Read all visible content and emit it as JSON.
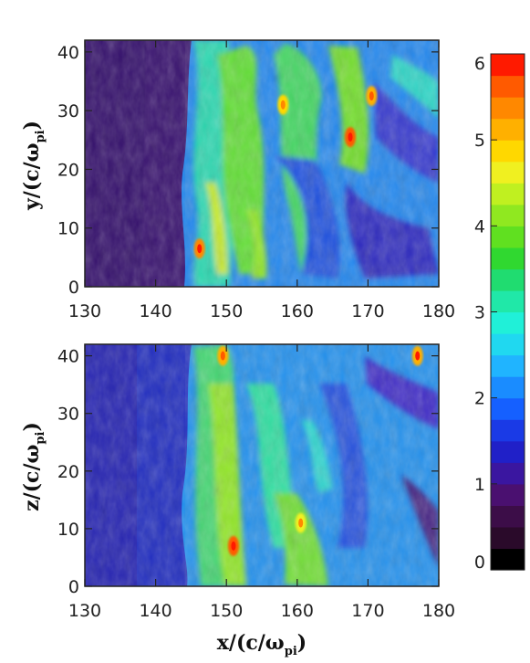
{
  "chart_data": [
    {
      "type": "heatmap",
      "panel": "top",
      "xlabel": "",
      "ylabel": {
        "main": "y/(c/ω",
        "sub": "pi",
        "close": ")"
      },
      "xlim": [
        130,
        180
      ],
      "ylim": [
        0,
        42
      ],
      "xticks": [
        "130",
        "140",
        "150",
        "160",
        "170",
        "180"
      ],
      "yticks": [
        "0",
        "10",
        "20",
        "30",
        "40"
      ],
      "shock_x": 145,
      "hotspots": [
        {
          "x": 146.2,
          "y": 6.5,
          "value": 5.4
        },
        {
          "x": 167.5,
          "y": 25.5,
          "value": 5.6
        },
        {
          "x": 170.5,
          "y": 32.5,
          "value": 5.1
        },
        {
          "x": 158.0,
          "y": 31.0,
          "value": 4.8
        }
      ]
    },
    {
      "type": "heatmap",
      "panel": "bottom",
      "xlabel": {
        "main": "x/(c/ω",
        "sub": "pi",
        "close": ")"
      },
      "ylabel": {
        "main": "z/(c/ω",
        "sub": "pi",
        "close": ")"
      },
      "xlim": [
        130,
        180
      ],
      "ylim": [
        0,
        42
      ],
      "xticks": [
        "130",
        "140",
        "150",
        "160",
        "170",
        "180"
      ],
      "yticks": [
        "0",
        "10",
        "20",
        "30",
        "40"
      ],
      "shock_x": 145,
      "hotspots": [
        {
          "x": 151.0,
          "y": 7.0,
          "value": 5.5
        },
        {
          "x": 149.5,
          "y": 40.0,
          "value": 5.0
        },
        {
          "x": 177.0,
          "y": 40.0,
          "value": 5.2
        },
        {
          "x": 160.5,
          "y": 11.0,
          "value": 4.7
        }
      ]
    }
  ],
  "colorbar": {
    "ticks": [
      "0",
      "1",
      "2",
      "3",
      "4",
      "5",
      "6"
    ],
    "range": [
      0,
      6
    ],
    "levels": 24,
    "colors": [
      "#000000",
      "#2a0a2a",
      "#3c0d48",
      "#4a1070",
      "#3a16a0",
      "#2020c8",
      "#1a3ae6",
      "#1560ff",
      "#1a8cff",
      "#20b4ff",
      "#20d8f0",
      "#20f0d8",
      "#20e8a8",
      "#20dc70",
      "#30d830",
      "#60e020",
      "#90e820",
      "#c0f020",
      "#f0f020",
      "#ffd800",
      "#ffb000",
      "#ff8800",
      "#ff5a00",
      "#ff1a00"
    ]
  }
}
